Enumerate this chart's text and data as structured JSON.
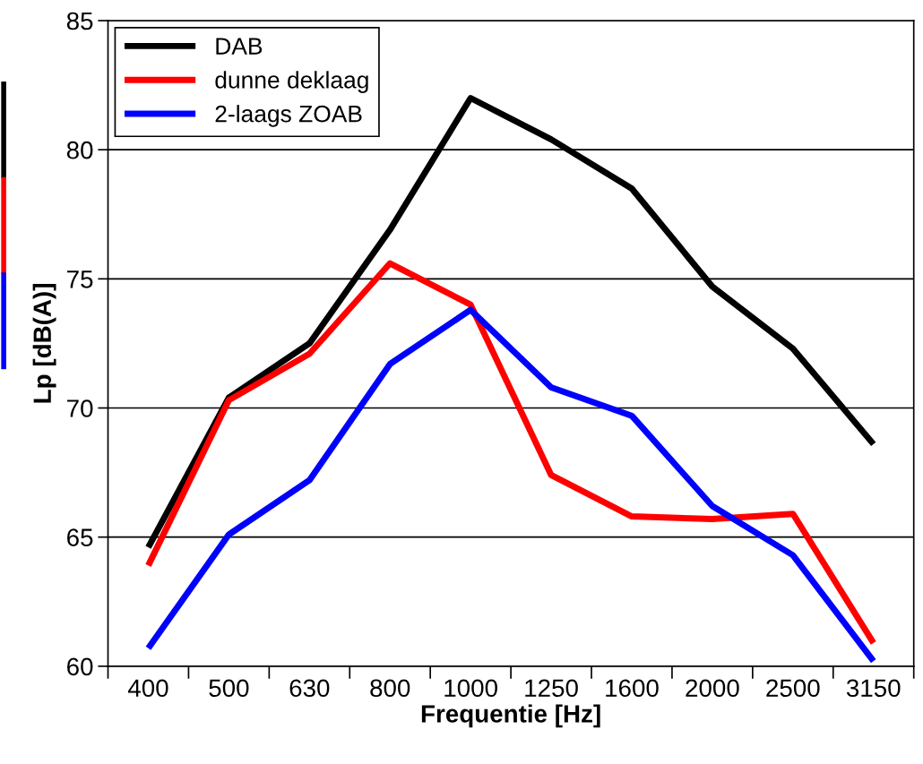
{
  "chart_data": {
    "type": "line",
    "xlabel": "Frequentie [Hz]",
    "ylabel": "Lp [dB(A)]",
    "categories": [
      "400",
      "500",
      "630",
      "800",
      "1000",
      "1250",
      "1600",
      "2000",
      "2500",
      "3150"
    ],
    "series": [
      {
        "name": "DAB",
        "color": "#000000",
        "values": [
          64.6,
          70.4,
          72.5,
          76.9,
          82.0,
          80.4,
          78.5,
          74.7,
          72.3,
          68.6
        ]
      },
      {
        "name": "dunne deklaag",
        "color": "#ff0000",
        "values": [
          63.9,
          70.3,
          72.1,
          75.6,
          74.0,
          67.4,
          65.8,
          65.7,
          65.9,
          60.9
        ]
      },
      {
        "name": "2-laags ZOAB",
        "color": "#0000ff",
        "values": [
          60.7,
          65.1,
          67.2,
          71.7,
          73.8,
          70.8,
          69.7,
          66.2,
          64.3,
          60.2
        ]
      }
    ],
    "ylim": [
      60,
      85
    ],
    "yticks": [
      60,
      65,
      70,
      75,
      80,
      85
    ],
    "grid": "y",
    "legend": "top left",
    "marker": "none",
    "line_style": "solid"
  }
}
